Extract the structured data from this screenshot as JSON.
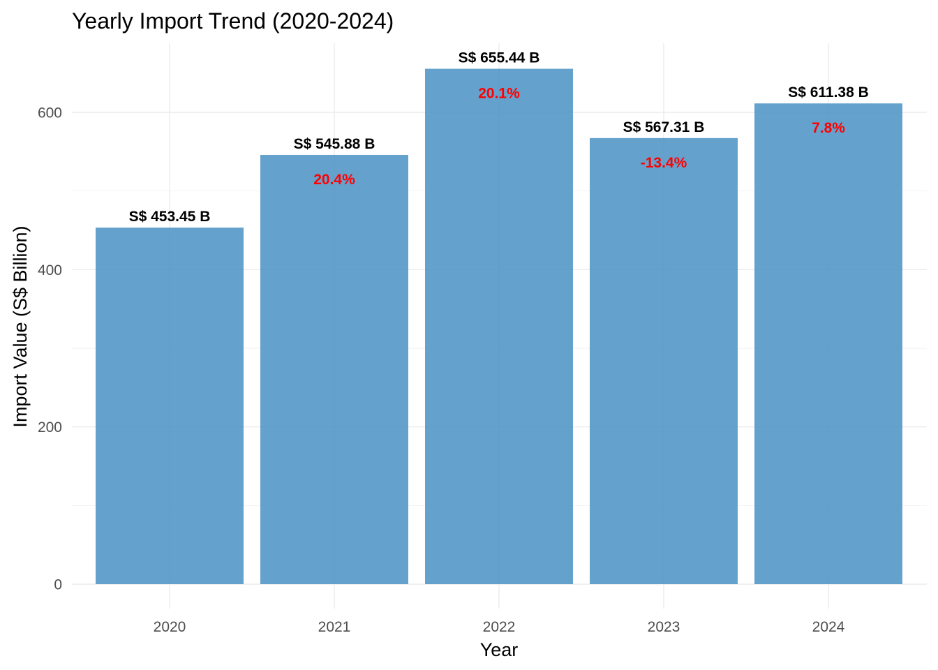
{
  "chart_data": {
    "type": "bar",
    "title": "Yearly Import Trend (2020-2024)",
    "xlabel": "Year",
    "ylabel": "Import Value (S$ Billion)",
    "categories": [
      "2020",
      "2021",
      "2022",
      "2023",
      "2024"
    ],
    "values": [
      453.45,
      545.88,
      655.44,
      567.31,
      611.38
    ],
    "value_labels": [
      "S$ 453.45 B",
      "S$ 545.88 B",
      "S$ 655.44 B",
      "S$ 567.31 B",
      "S$ 611.38 B"
    ],
    "change_labels": [
      "",
      "20.4%",
      "20.1%",
      "-13.4%",
      "7.8%"
    ],
    "ylim": [
      0,
      690
    ],
    "y_ticks": [
      0,
      200,
      400,
      600
    ],
    "grid": true,
    "legend": "none",
    "bar_color": "#4a90c4",
    "change_label_color": "#ff0000"
  }
}
